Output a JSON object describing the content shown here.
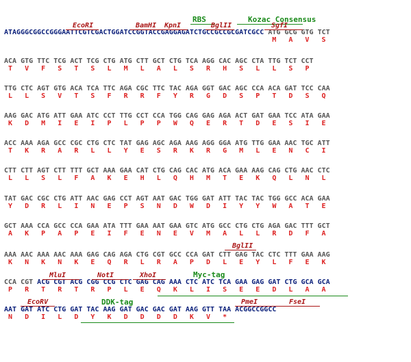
{
  "lines": [
    {
      "segs": [
        {
          "t": "ATAGGGCGGCCGGGAATTCGTCGACTGGATCCGGTACCGAGGAGATCTGCCGCCGCGATCGCC",
          "c": "b"
        },
        {
          "t": " ATG GCG GTG TCT",
          "c": "g"
        }
      ],
      "aa": "M   A   V   S",
      "sites": [
        "EcoRI",
        "BamHI",
        "KpnI",
        "BglII",
        "SgfI"
      ],
      "tags": [
        "RBS",
        "Kozac Consensus"
      ]
    },
    {
      "segs": [
        {
          "t": "ACA GTG TTC TCG ACT TCG CTG ATG CTT GCT CTG TCA AGG CAC AGC CTA TTG TCT CCT",
          "c": "g"
        }
      ],
      "aa": "T   V   F   S   T   S   L   M   L   A   L   S   R   H   S   L   L   S   P"
    },
    {
      "segs": [
        {
          "t": "TTG CTC AGT GTG ACA TCA TTC AGA CGC TTC TAC AGA GGT GAC AGC CCA ACA GAT TCC CAA",
          "c": "g"
        }
      ],
      "aa": "L   L   S   V   T   S   F   R   R   F   Y   R   G   D   S   P   T   D   S   Q"
    },
    {
      "segs": [
        {
          "t": "AAG GAC ATG ATT GAA ATC CCT TTG CCT CCA TGG CAG GAG AGA ACT GAT GAA TCC ATA GAA",
          "c": "g"
        }
      ],
      "aa": "K   D   M   I   E   I   P   L   P   P   W   Q   E   R   T   D   E   S   I   E"
    },
    {
      "segs": [
        {
          "t": "ACC AAA AGA GCC CGC CTG CTC TAT GAG AGC AGA AAG AGG GGA ATG TTG GAA AAC TGC ATT",
          "c": "g"
        }
      ],
      "aa": "T   K   R   A   R   L   L   Y   E   S   R   K   R   G   M   L   E   N   C   I"
    },
    {
      "segs": [
        {
          "t": "CTT CTT AGT CTT TTT GCT AAA GAA CAT CTG CAG CAC ATG ACA GAA AAG CAG CTG AAC CTC",
          "c": "g"
        }
      ],
      "aa": "L   L   S   L   F   A   K   E   H   L   Q   H   M   T   E   K   Q   L   N   L"
    },
    {
      "segs": [
        {
          "t": "TAT GAC CGC CTG ATT AAC GAG CCT AGT AAT GAC TGG GAT ATT TAC TAC TGG GCC ACA GAA",
          "c": "g"
        }
      ],
      "aa": "Y   D   R   L   I   N   E   P   S   N   D   W   D   I   Y   Y   W   A   T   E"
    },
    {
      "segs": [
        {
          "t": "GCT AAA CCA GCC CCA GAA ATA TTT GAA AAT GAA GTC ATG GCC CTG CTG AGA GAC TTT GCT",
          "c": "g"
        }
      ],
      "aa": "A   K   P   A   P   E   I   F   E   N   E   V   M   A   L   L   R   D   F   A"
    },
    {
      "segs": [
        {
          "t": "AAA AAC AAA AAC AAA GAG CAG AGA CTG CGT GCC CCA GAT CTT GAG TAC CTC TTT GAA AAG",
          "c": "g"
        }
      ],
      "aa": "K   N   K   N   K   E   Q   R   L   R   A   P   D   L   E   Y   L   F   E   K",
      "sites": [
        "BglII"
      ]
    },
    {
      "segs": [
        {
          "t": "CCA CGT ",
          "c": "g"
        },
        {
          "t": "ACG CGT ACG CGG CCG CTC GAG CAG AAA CTC ATC TCA GAA GAG GAT CTG GCA GCA",
          "c": "b"
        }
      ],
      "aa": "P   R   T   R   T   R   P   L   E   Q   K   L   I   S   E   E   D   L   A   A",
      "sites": [
        "MluI",
        "NotI",
        "XhoI"
      ],
      "tags": [
        "Myc-tag"
      ]
    },
    {
      "segs": [
        {
          "t": "AAT GAT ATC CTG GAT TAC AAG GAT GAC GAC GAT AAG GTT TAA ACGGCCGGCC",
          "c": "b"
        }
      ],
      "aa": "N   D   I   L   D   Y   K   D   D   D   D   K   V   *",
      "sites": [
        "EcoRV",
        "PmeI",
        "FseI"
      ],
      "tags": [
        "DDK-tag"
      ]
    }
  ],
  "colors": {
    "bases_vector": "#0a1f7a",
    "bases_insert": "#555555",
    "amino_acids": "#dd2222",
    "sites": "#aa1515",
    "tags": "#1a8a1a"
  }
}
